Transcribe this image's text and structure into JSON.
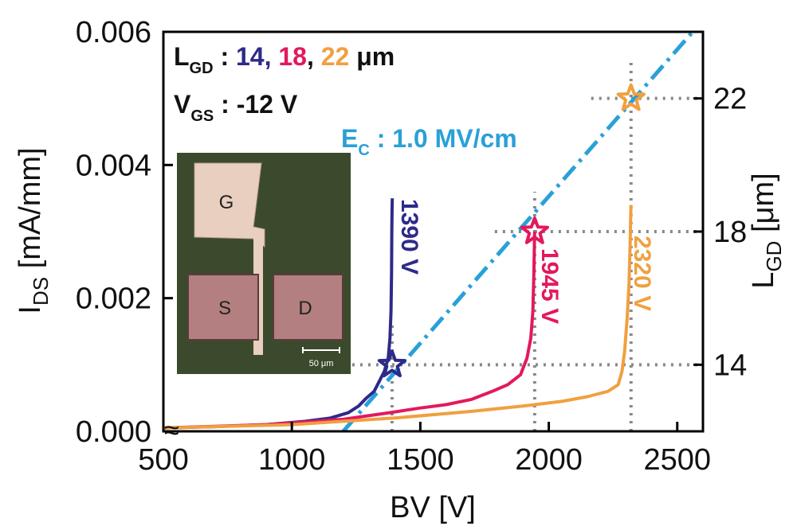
{
  "chart_data": {
    "type": "line",
    "xlabel": "BV [V]",
    "ylabel_main": "I",
    "ylabel_sub": "DS",
    "ylabel_unit": " [mA/mm]",
    "y2label_main": "L",
    "y2label_sub": "GD",
    "y2label_unit": " [μm]",
    "xlim": [
      500,
      2600
    ],
    "ylim": [
      0.0,
      0.006
    ],
    "y2lim": [
      12.0,
      24.0
    ],
    "x_ticks": [
      "500",
      "1000",
      "1500",
      "2000",
      "2500"
    ],
    "x_tick_values": [
      500,
      1000,
      1500,
      2000,
      2500
    ],
    "y_ticks": [
      "0.000",
      "0.002",
      "0.004",
      "0.006"
    ],
    "y_tick_values": [
      0.0,
      0.002,
      0.004,
      0.006
    ],
    "y2_ticks": [
      "14",
      "18",
      "22"
    ],
    "y2_tick_values": [
      14,
      18,
      22
    ],
    "break_mark": "≈",
    "annotations": {
      "lgd_label_main": "L",
      "lgd_label_sub": "GD",
      "lgd_sep": " : ",
      "lgd_values": [
        "14",
        "18",
        "22"
      ],
      "lgd_commas": [
        ", ",
        ", "
      ],
      "lgd_unit": " μm",
      "vgs_label_main": "V",
      "vgs_label_sub": "GS",
      "vgs_value": " : -12 V",
      "ec_label_main": "E",
      "ec_label_sub": "C",
      "ec_value": " : 1.0 MV/cm"
    },
    "series": [
      {
        "color": "#2e2a8a",
        "bv_label": "1390 V",
        "bv": 1390,
        "lgd": 14,
        "x": [
          500,
          700,
          900,
          1050,
          1150,
          1220,
          1260,
          1290,
          1320,
          1340,
          1360,
          1375,
          1382,
          1386,
          1388,
          1389,
          1390,
          1391
        ],
        "y": [
          5e-05,
          7e-05,
          0.0001,
          0.00015,
          0.0002,
          0.00028,
          0.00038,
          0.0005,
          0.0006,
          0.00075,
          0.0009,
          0.0011,
          0.0014,
          0.0018,
          0.0024,
          0.003,
          0.0033,
          0.0035
        ]
      },
      {
        "color": "#e3195c",
        "bv_label": "1945 V",
        "bv": 1945,
        "lgd": 18,
        "x": [
          500,
          900,
          1200,
          1380,
          1500,
          1600,
          1700,
          1780,
          1840,
          1890,
          1915,
          1930,
          1938,
          1942,
          1944,
          1945
        ],
        "y": [
          5e-05,
          0.0001,
          0.00018,
          0.00028,
          0.00035,
          0.0004,
          0.00048,
          0.0006,
          0.0007,
          0.00085,
          0.0011,
          0.0014,
          0.0018,
          0.0024,
          0.0028,
          0.003
        ]
      },
      {
        "color": "#f0a040",
        "bv_label": "2320 V",
        "bv": 2320,
        "lgd": 22,
        "x": [
          500,
          1000,
          1400,
          1700,
          1900,
          2050,
          2150,
          2230,
          2270,
          2285,
          2295,
          2305,
          2312,
          2316,
          2318,
          2320
        ],
        "y": [
          5e-05,
          0.0001,
          0.0002,
          0.0003,
          0.00038,
          0.00045,
          0.00052,
          0.0006,
          0.0007,
          0.0009,
          0.0012,
          0.0017,
          0.0022,
          0.0027,
          0.0031,
          0.0034
        ]
      }
    ],
    "ec_line": {
      "color": "#2aa0d8",
      "x": [
        1200,
        2560
      ],
      "lgd": [
        12.0,
        24.0
      ]
    }
  },
  "inset": {
    "label_g": "G",
    "label_s": "S",
    "label_d": "D",
    "scale_bar": "50 μm"
  }
}
